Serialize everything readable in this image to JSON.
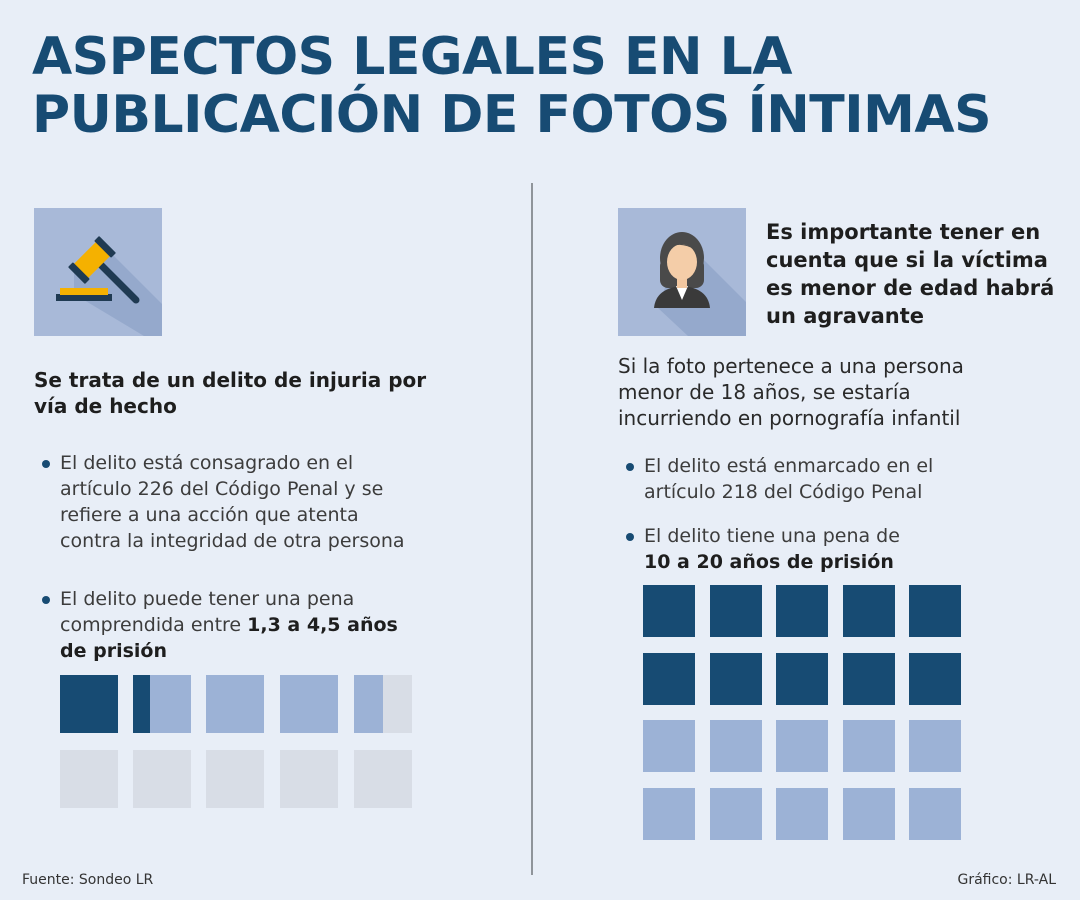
{
  "title": {
    "line1": "ASPECTOS LEGALES EN LA",
    "line2": "PUBLICACIÓN DE FOTOS ÍNTIMAS"
  },
  "left": {
    "icon": "gavel-icon",
    "heading_line1": "Se trata de un delito de injuria por",
    "heading_line2": "vía de hecho",
    "bullet1": [
      "El delito está consagrado en el",
      "artículo 226 del Código Penal y se",
      "refiere a una acción que atenta",
      "contra la integridad de otra persona"
    ],
    "bullet2_line1": "El delito puede tener una pena",
    "bullet2_line2_prefix": "comprendida entre ",
    "bullet2_line2_bold": "1,3 a 4,5 años",
    "bullet2_line3_bold": "de prisión",
    "penalty_min_years": 1.3,
    "penalty_max_years": 4.5
  },
  "right": {
    "icon": "woman-avatar-icon",
    "heading": [
      "Es importante tener en",
      "cuenta que si la víctima",
      "es menor de edad habrá",
      "un agravante"
    ],
    "para": [
      "Si la foto pertenece a una persona",
      "menor de 18 años, se estaría",
      "incurriendo en pornografía infantil"
    ],
    "bullet1": [
      "El delito está enmarcado en el",
      "artículo 218 del Código Penal"
    ],
    "bullet2_line1": "El delito tiene una pena de",
    "bullet2_line2_bold": "10 a 20 años de prisión",
    "penalty_min_years": 10,
    "penalty_max_years": 20
  },
  "colors": {
    "dark": "#174b73",
    "mid": "#9cb2d6",
    "light": "#d8dde6",
    "background": "#e8eef7"
  },
  "footer": {
    "source": "Fuente: Sondeo LR",
    "credit": "Gráfico: LR-AL"
  }
}
